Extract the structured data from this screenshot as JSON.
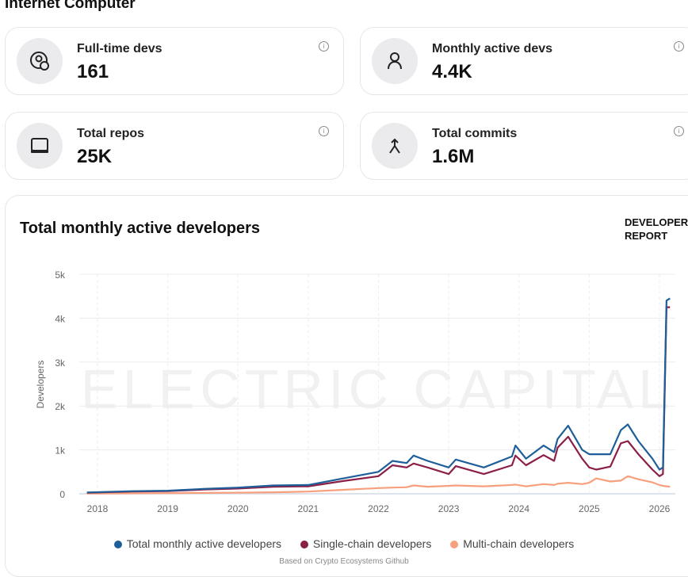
{
  "header": {
    "title": "Internet Computer"
  },
  "stats": [
    {
      "label": "Full-time devs",
      "value": "161",
      "icon": "user-clock-icon"
    },
    {
      "label": "Monthly active devs",
      "value": "4.4K",
      "icon": "user-icon"
    },
    {
      "label": "Total repos",
      "value": "25K",
      "icon": "laptop-icon"
    },
    {
      "label": "Total commits",
      "value": "1.6M",
      "icon": "merge-icon"
    }
  ],
  "info_symbol": "i",
  "report": {
    "line1": "DEVELOPER",
    "line2": "REPORT"
  },
  "chart_data": {
    "type": "line",
    "title": "Total monthly active developers",
    "xlabel": "",
    "ylabel": "Developers",
    "ylim": [
      0,
      5000
    ],
    "xlim": [
      2017.75,
      2026.25
    ],
    "yticks": [
      {
        "v": 0,
        "label": "0"
      },
      {
        "v": 1000,
        "label": "1k"
      },
      {
        "v": 2000,
        "label": "2k"
      },
      {
        "v": 3000,
        "label": "3k"
      },
      {
        "v": 4000,
        "label": "4k"
      },
      {
        "v": 5000,
        "label": "5k"
      }
    ],
    "xticks": [
      2018,
      2019,
      2020,
      2021,
      2022,
      2023,
      2024,
      2025,
      2026
    ],
    "watermark": "ELECTRIC CAPITAL",
    "legend_position": "bottom",
    "source": "Based on Crypto Ecosystems Github",
    "x": [
      2017.85,
      2018.5,
      2019.0,
      2019.5,
      2020.0,
      2020.5,
      2021.0,
      2021.5,
      2022.0,
      2022.2,
      2022.4,
      2022.5,
      2022.7,
      2023.0,
      2023.1,
      2023.5,
      2023.9,
      2023.95,
      2024.1,
      2024.35,
      2024.5,
      2024.55,
      2024.7,
      2024.9,
      2025.0,
      2025.1,
      2025.3,
      2025.45,
      2025.55,
      2025.7,
      2025.9,
      2026.0,
      2026.05,
      2026.1,
      2026.15
    ],
    "series": [
      {
        "name": "Total monthly active developers",
        "color": "#1f5f99",
        "values": [
          30,
          60,
          70,
          110,
          140,
          190,
          200,
          350,
          500,
          750,
          700,
          870,
          750,
          600,
          780,
          600,
          850,
          1100,
          800,
          1100,
          950,
          1250,
          1550,
          1000,
          900,
          900,
          900,
          1450,
          1580,
          1200,
          800,
          550,
          600,
          4400,
          4450
        ]
      },
      {
        "name": "Single-chain developers",
        "color": "#8b1f48",
        "values": [
          25,
          50,
          60,
          95,
          120,
          160,
          170,
          290,
          400,
          650,
          600,
          690,
          600,
          450,
          630,
          450,
          650,
          870,
          650,
          880,
          750,
          1050,
          1300,
          800,
          600,
          550,
          620,
          1150,
          1200,
          900,
          550,
          400,
          450,
          4250,
          4250
        ]
      },
      {
        "name": "Multi-chain developers",
        "color": "#f7a07e",
        "values": [
          5,
          10,
          15,
          20,
          25,
          35,
          50,
          90,
          130,
          140,
          150,
          190,
          160,
          180,
          190,
          170,
          200,
          210,
          170,
          220,
          200,
          230,
          250,
          220,
          250,
          350,
          280,
          300,
          400,
          330,
          260,
          200,
          180,
          170,
          160
        ]
      }
    ]
  }
}
